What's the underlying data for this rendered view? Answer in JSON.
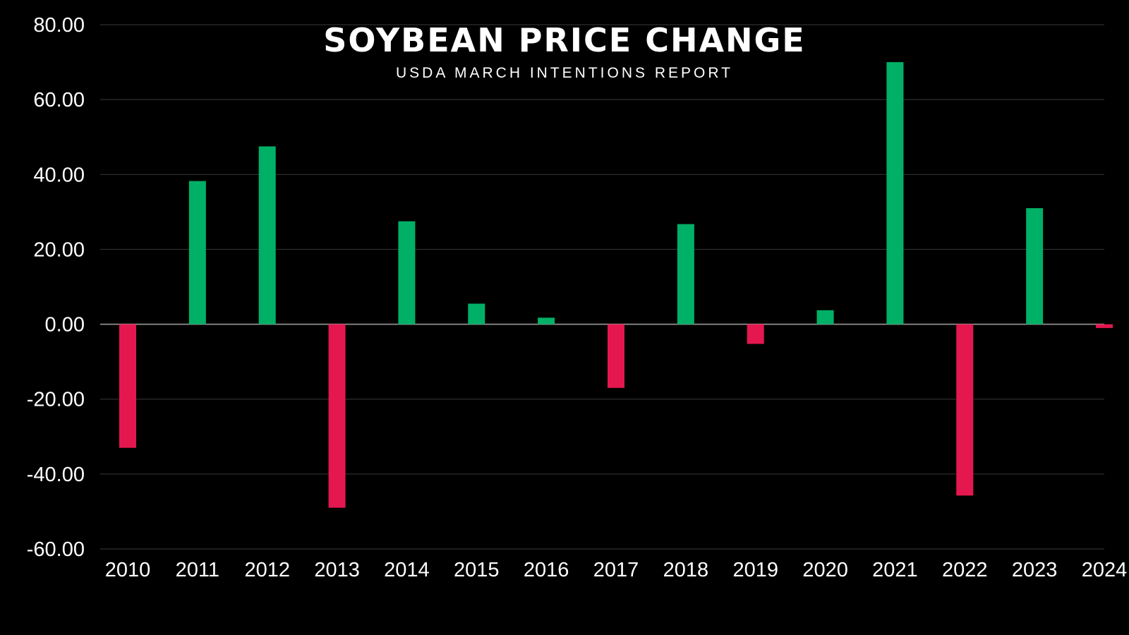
{
  "chart_data": {
    "type": "bar",
    "title": "SOYBEAN PRICE CHANGE",
    "subtitle": "USDA MARCH INTENTIONS REPORT",
    "xlabel": "",
    "ylabel": "",
    "categories": [
      "2010",
      "2011",
      "2012",
      "2013",
      "2014",
      "2015",
      "2016",
      "2017",
      "2018",
      "2019",
      "2020",
      "2021",
      "2022",
      "2023",
      "2024"
    ],
    "values": [
      -33,
      38.25,
      47.5,
      -49,
      27.5,
      5.5,
      1.75,
      -17,
      26.75,
      -5.25,
      3.75,
      70,
      -45.75,
      31,
      -1
    ],
    "ylim": [
      -60,
      80
    ],
    "yticks": [
      80,
      60,
      40,
      20,
      0,
      -20,
      -40,
      -60
    ],
    "ytick_labels": [
      "80.00",
      "60.00",
      "40.00",
      "20.00",
      "0.00",
      "-20.00",
      "-40.00",
      "-60.00"
    ],
    "grid": true,
    "colors": {
      "positive": "#00b066",
      "negative": "#e5174f",
      "grid": "#3a3a3a",
      "zero_line": "#9a9a9a",
      "text": "#ffffff"
    }
  }
}
